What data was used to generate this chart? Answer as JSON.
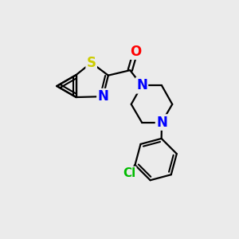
{
  "background_color": "#ebebeb",
  "atom_colors": {
    "S": "#cccc00",
    "N": "#0000ff",
    "O": "#ff0000",
    "Cl": "#00bb00",
    "C": "#000000"
  },
  "bond_color": "#000000",
  "bond_width": 1.6,
  "figsize": [
    3.0,
    3.0
  ],
  "dpi": 100,
  "xlim": [
    0,
    10
  ],
  "ylim": [
    0,
    10
  ]
}
